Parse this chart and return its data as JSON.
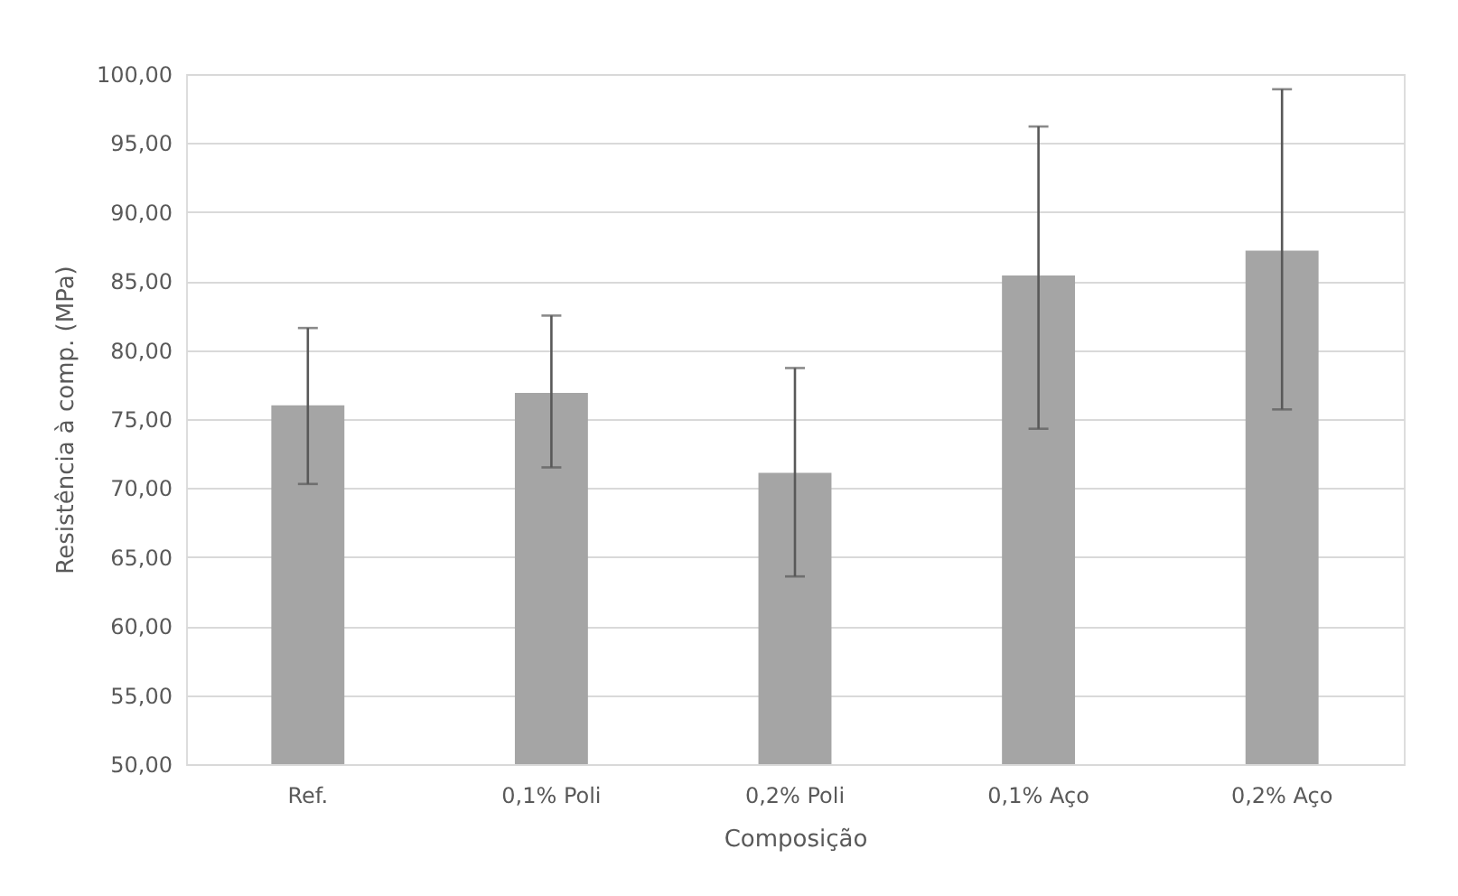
{
  "chart_data": {
    "type": "bar",
    "xlabel": "Composição",
    "ylabel": "Resistência à comp. (MPa)",
    "categories": [
      "Ref.",
      "0,1% Poli",
      "0,2% Poli",
      "0,1% Aço",
      "0,2% Aço"
    ],
    "values": [
      76.0,
      76.9,
      71.1,
      85.4,
      87.2
    ],
    "errors": [
      [
        70.3,
        81.6
      ],
      [
        71.5,
        82.5
      ],
      [
        63.6,
        78.7
      ],
      [
        74.3,
        96.2
      ],
      [
        75.7,
        98.9
      ]
    ],
    "color": "#a5a5a5",
    "ylim": [
      50,
      100
    ],
    "yticks": [
      {
        "value": 50,
        "label": "50,00"
      },
      {
        "value": 55,
        "label": "55,00"
      },
      {
        "value": 60,
        "label": "60,00"
      },
      {
        "value": 65,
        "label": "65,00"
      },
      {
        "value": 70,
        "label": "70,00"
      },
      {
        "value": 75,
        "label": "75,00"
      },
      {
        "value": 80,
        "label": "80,00"
      },
      {
        "value": 85,
        "label": "85,00"
      },
      {
        "value": 90,
        "label": "90,00"
      },
      {
        "value": 95,
        "label": "95,00"
      },
      {
        "value": 100,
        "label": "100,00"
      }
    ],
    "grid": "y"
  }
}
